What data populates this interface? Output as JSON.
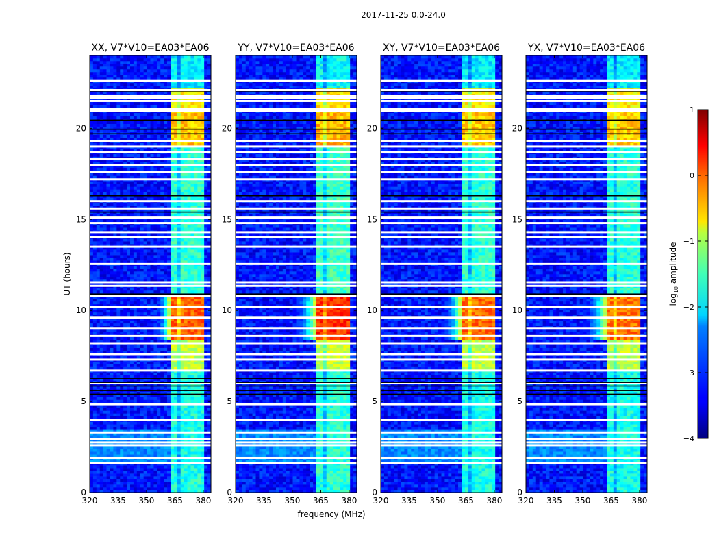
{
  "suptitle": "2017-11-25 0.0-24.0",
  "shared": {
    "xlabel": "frequency (MHz)",
    "ylabel": "UT (hours)",
    "xlim": [
      320,
      384
    ],
    "ylim": [
      0,
      24
    ],
    "xticks": [
      320,
      335,
      350,
      365,
      380
    ],
    "yticks": [
      0,
      5,
      10,
      15,
      20
    ]
  },
  "colorbar": {
    "label_main": "log",
    "label_sub": "10",
    "label_rest": " amplitude",
    "cmap": "jet",
    "vmin": -4,
    "vmax": 1,
    "ticks": [
      1,
      0,
      -1,
      -2,
      -3,
      -4
    ],
    "tick_labels": [
      "1",
      "0",
      "−1",
      "−2",
      "−3",
      "−4"
    ]
  },
  "chart_data": [
    {
      "type": "heatmap",
      "title": "XX, V7*V10=EA03*EA06",
      "band_offset": 0.0,
      "tail": 0.6
    },
    {
      "type": "heatmap",
      "title": "YY, V7*V10=EA03*EA06",
      "band_offset": 0.25,
      "tail": 1.0
    },
    {
      "type": "heatmap",
      "title": "XY, V7*V10=EA03*EA06",
      "band_offset": -0.05,
      "tail": 0.8
    },
    {
      "type": "heatmap",
      "title": "YX, V7*V10=EA03*EA06",
      "band_offset": -0.1,
      "tail": 1.0
    }
  ],
  "model": {
    "background_log_amp": -3.3,
    "rfi_band_mhz": [
      362,
      381
    ],
    "rfi_segments": [
      {
        "t": [
          0,
          6.8
        ],
        "level": -2.0
      },
      {
        "t": [
          6.8,
          8.4
        ],
        "level": -1.2
      },
      {
        "t": [
          8.4,
          10.8
        ],
        "level": -0.1
      },
      {
        "t": [
          10.8,
          19.0
        ],
        "level": -1.9
      },
      {
        "t": [
          19.0,
          21.0
        ],
        "level": -0.6
      },
      {
        "t": [
          21.0,
          22.2
        ],
        "level": -0.8
      },
      {
        "t": [
          22.2,
          24
        ],
        "level": -2.2
      }
    ],
    "bright_background": {
      "t": [
        1.6,
        3.4
      ],
      "level": -2.7
    },
    "flagged_white_hours": [
      1.6,
      1.9,
      2.6,
      2.75,
      2.95,
      3.3,
      4.0,
      4.85,
      6.0,
      6.7,
      7.3,
      7.6,
      8.2,
      8.6,
      9.0,
      9.6,
      10.2,
      10.8,
      11.35,
      11.55,
      12.55,
      13.5,
      14.05,
      14.3,
      14.8,
      15.1,
      15.6,
      16.0,
      17.2,
      17.6,
      18.0,
      18.3,
      18.7,
      19.0,
      19.3,
      20.95,
      21.05,
      21.5,
      21.65,
      21.8,
      22.1,
      22.6
    ],
    "flagged_black_hours": [
      5.4,
      5.6,
      5.85,
      6.05,
      6.25,
      10.9,
      15.4,
      16.3,
      19.7,
      19.95,
      20.45,
      22.0
    ]
  }
}
